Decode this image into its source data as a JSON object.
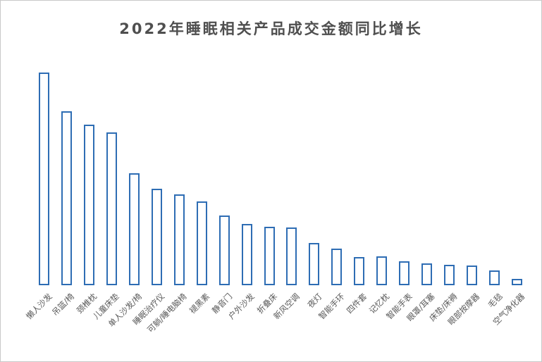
{
  "window": {
    "background": "#ffffff",
    "border_color": "#c9c9c9"
  },
  "chart_data": {
    "type": "bar",
    "title": "2022年睡眠相关产品成交金额同比增长",
    "xlabel": "",
    "ylabel": "",
    "categories": [
      "懒人沙发",
      "吊篮/椅",
      "颈椎枕",
      "儿童床垫",
      "单人沙发/椅",
      "睡眠治疗仪",
      "可躺/睡电脑椅",
      "褪黑素",
      "静音门",
      "户外沙发",
      "折叠床",
      "新风空调",
      "夜灯",
      "智能手环",
      "四件套",
      "记忆枕",
      "智能手表",
      "眼罩/耳塞",
      "床垫/床褥",
      "眼部按摩器",
      "毛毯",
      "空气净化器"
    ],
    "values": [
      302,
      247,
      228,
      217,
      159,
      137,
      129,
      119,
      99,
      87,
      83,
      82,
      60,
      52,
      40,
      41,
      34,
      31,
      29,
      28,
      21,
      9
    ],
    "value_unit": "relative growth (y-axis unlabeled in source image)",
    "ylim": [
      0,
      310
    ],
    "grid": false,
    "legend": false,
    "axis_lines": false,
    "colors": {
      "bar_border": "#2e6db4",
      "bar_fill": "#ffffff",
      "title_text": "#4f4f4f",
      "axis_label_text": "#595959"
    }
  }
}
